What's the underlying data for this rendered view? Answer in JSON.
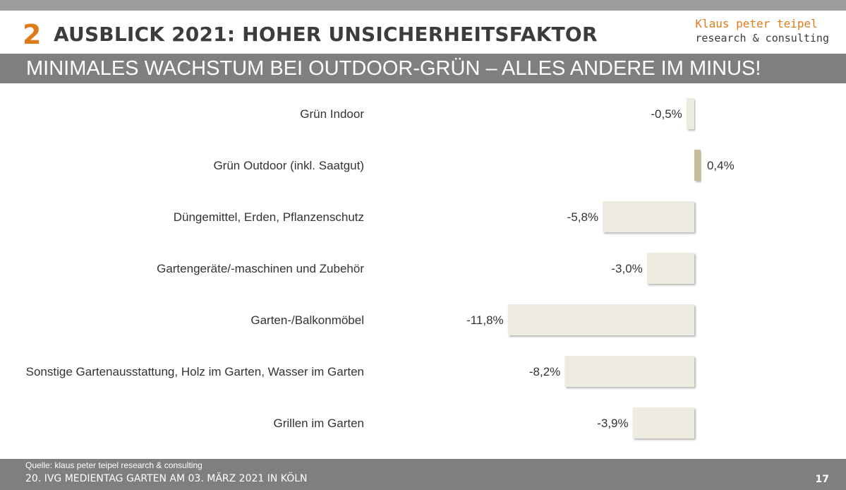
{
  "header": {
    "section_number": "2",
    "title": "AUSBLICK 2021: HOHER UNSICHERHEITSFAKTOR",
    "brand_line1": "Klaus peter teipel",
    "brand_line2": "research & consulting",
    "subtitle": "MINIMALES WACHSTUM BEI OUTDOOR-GRÜN – ALLES ANDERE IM MINUS!"
  },
  "colors": {
    "accent": "#e07b1a",
    "bar_negative": "#eeebe1",
    "bar_positive": "#c7bd99",
    "band": "#7f7f7f"
  },
  "chart_data": {
    "type": "bar",
    "orientation": "horizontal",
    "categories": [
      "Grün Indoor",
      "Grün Outdoor (inkl. Saatgut)",
      "Düngemittel, Erden, Pflanzenschutz",
      "Gartengeräte/-maschinen und Zubehör",
      "Garten-/Balkonmöbel",
      "Sonstige Gartenausstattung, Holz im Garten, Wasser im Garten",
      "Grillen im Garten"
    ],
    "values": [
      -0.5,
      0.4,
      -5.8,
      -3.0,
      -11.8,
      -8.2,
      -3.9
    ],
    "value_labels": [
      "-0,5%",
      "0,4%",
      "-5,8%",
      "-3,0%",
      "-11,8%",
      "-8,2%",
      "-3,9%"
    ],
    "unit": "%",
    "title": "",
    "xlabel": "",
    "ylabel": "",
    "grid": false,
    "legend": "none"
  },
  "footer": {
    "source": "Quelle: klaus peter teipel research & consulting",
    "event": "20. IVG MEDIENTAG GARTEN AM 03. MÄRZ 2021 IN KÖLN",
    "page_number": "17"
  }
}
